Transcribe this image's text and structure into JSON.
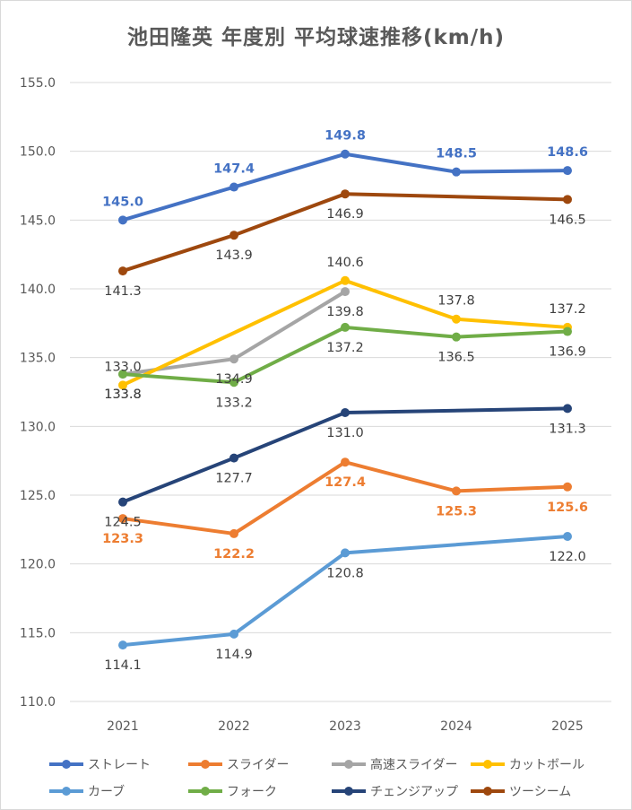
{
  "chart_data": {
    "type": "line",
    "title": "池田隆英 年度別 平均球速推移(km/h)",
    "x": [
      "2021",
      "2022",
      "2023",
      "2024",
      "2025"
    ],
    "ylim": [
      110,
      155
    ],
    "yticks": [
      "110.0",
      "115.0",
      "120.0",
      "125.0",
      "130.0",
      "135.0",
      "140.0",
      "145.0",
      "150.0",
      "155.0"
    ],
    "grid": true,
    "legend_position": "bottom",
    "series": [
      {
        "name": "ストレート",
        "color": "#4472C4",
        "values": [
          145.0,
          147.4,
          149.8,
          148.5,
          148.6
        ],
        "labels": [
          "145.0",
          "147.4",
          "149.8",
          "148.5",
          "148.6"
        ],
        "label_pos": "above",
        "label_color": "#4472C4"
      },
      {
        "name": "スライダー",
        "color": "#ED7D31",
        "values": [
          123.3,
          122.2,
          127.4,
          125.3,
          125.6
        ],
        "labels": [
          "123.3",
          "122.2",
          "127.4",
          "125.3",
          "125.6"
        ],
        "label_pos": "below",
        "label_color": "#ED7D31"
      },
      {
        "name": "高速スライダー",
        "color": "#A5A5A5",
        "values": [
          133.8,
          134.9,
          139.8,
          null,
          null
        ],
        "labels": [
          "133.8",
          "134.9",
          "139.8",
          "",
          ""
        ],
        "label_pos": "below",
        "label_color": "#404040"
      },
      {
        "name": "カットボール",
        "color": "#FFC000",
        "values": [
          133.0,
          null,
          140.6,
          137.8,
          137.2
        ],
        "labels": [
          "133.0",
          "",
          "140.6",
          "137.8",
          "137.2"
        ],
        "label_pos": "above",
        "label_color": "#404040"
      },
      {
        "name": "カーブ",
        "color": "#5B9BD5",
        "values": [
          114.1,
          114.9,
          120.8,
          null,
          122.0
        ],
        "labels": [
          "114.1",
          "114.9",
          "120.8",
          "",
          "122.0"
        ],
        "label_pos": "below",
        "label_color": "#404040"
      },
      {
        "name": "フォーク",
        "color": "#70AD47",
        "values": [
          133.8,
          133.2,
          137.2,
          136.5,
          136.9
        ],
        "labels": [
          "133.8",
          "133.2",
          "137.2",
          "136.5",
          "136.9"
        ],
        "label_pos": "below",
        "label_color": "#404040"
      },
      {
        "name": "チェンジアップ",
        "color": "#264478",
        "values": [
          124.5,
          127.7,
          131.0,
          null,
          131.3
        ],
        "labels": [
          "124.5",
          "127.7",
          "131.0",
          "",
          "131.3"
        ],
        "label_pos": "below",
        "label_color": "#404040"
      },
      {
        "name": "ツーシーム",
        "color": "#9E480E",
        "values": [
          141.3,
          143.9,
          146.9,
          null,
          146.5
        ],
        "labels": [
          "141.3",
          "143.9",
          "146.9",
          "",
          "146.5"
        ],
        "label_pos": "below",
        "label_color": "#404040"
      }
    ]
  }
}
